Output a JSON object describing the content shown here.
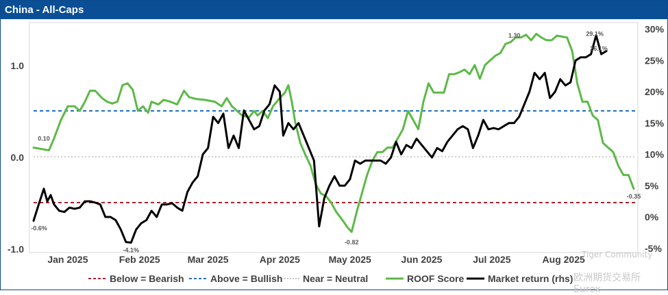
{
  "header": {
    "title": "China - All-Caps"
  },
  "watermark": {
    "line1": "Tiger Community",
    "line2": "欧洲期货交易所Eurex"
  },
  "chart_data": {
    "type": "line",
    "title": "China - All-Caps",
    "left_axis": {
      "ticks": [
        "1.0",
        "0.0",
        "-1.0"
      ],
      "values": [
        1,
        0,
        -1
      ],
      "ylim": [
        -1.0,
        1.35
      ]
    },
    "right_axis": {
      "ticks": [
        "30%",
        "25%",
        "20%",
        "15%",
        "10%",
        "5%",
        "0%",
        "-5%"
      ],
      "values": [
        30,
        25,
        20,
        15,
        10,
        5,
        0,
        -5
      ],
      "ylim": [
        -5,
        30
      ]
    },
    "x_ticks": [
      "Jan 2025",
      "Feb 2025",
      "Mar 2025",
      "Apr 2025",
      "May 2025",
      "Jun 2025",
      "Jul 2025",
      "Aug 2025"
    ],
    "reference_lines": [
      {
        "name": "Below = Bearish",
        "value": -0.5,
        "color": "#a8222a",
        "style": "dashed"
      },
      {
        "name": "Above = Bullish",
        "value": 0.5,
        "color": "#1f6fc0",
        "style": "dashed"
      },
      {
        "name": "Near = Neutral",
        "value": 0.0,
        "color": "#c0c0c0",
        "style": "dotted"
      }
    ],
    "series": [
      {
        "name": "ROOF Score",
        "axis": "left",
        "color": "#5cb947",
        "points": [
          [
            0,
            0.1
          ],
          [
            6,
            0.08
          ],
          [
            9,
            0.07
          ],
          [
            12,
            0.2
          ],
          [
            16,
            0.4
          ],
          [
            20,
            0.55
          ],
          [
            24,
            0.55
          ],
          [
            27,
            0.5
          ],
          [
            30,
            0.6
          ],
          [
            33,
            0.72
          ],
          [
            36,
            0.72
          ],
          [
            40,
            0.64
          ],
          [
            43,
            0.6
          ],
          [
            46,
            0.58
          ],
          [
            49,
            0.6
          ],
          [
            52,
            0.78
          ],
          [
            55,
            0.8
          ],
          [
            58,
            0.73
          ],
          [
            61,
            0.5
          ],
          [
            64,
            0.55
          ],
          [
            67,
            0.48
          ],
          [
            69,
            0.6
          ],
          [
            73,
            0.57
          ],
          [
            76,
            0.62
          ],
          [
            80,
            0.6
          ],
          [
            84,
            0.57
          ],
          [
            88,
            0.72
          ],
          [
            91,
            0.65
          ],
          [
            95,
            0.63
          ],
          [
            100,
            0.62
          ],
          [
            106,
            0.6
          ],
          [
            110,
            0.55
          ],
          [
            113,
            0.64
          ],
          [
            116,
            0.55
          ],
          [
            119,
            0.5
          ],
          [
            122,
            0.45
          ],
          [
            126,
            0.43
          ],
          [
            129,
            0.5
          ],
          [
            131,
            0.45
          ],
          [
            134,
            0.5
          ],
          [
            137,
            0.42
          ],
          [
            140,
            0.55
          ],
          [
            144,
            0.64
          ],
          [
            147,
            0.7
          ],
          [
            149,
            0.78
          ],
          [
            151,
            0.6
          ],
          [
            153,
            0.38
          ],
          [
            156,
            0.15
          ],
          [
            159,
            0.02
          ],
          [
            162,
            -0.1
          ],
          [
            165,
            -0.3
          ],
          [
            168,
            -0.4
          ],
          [
            171,
            -0.43
          ],
          [
            174,
            -0.5
          ],
          [
            177,
            -0.6
          ],
          [
            181,
            -0.7
          ],
          [
            184,
            -0.78
          ],
          [
            186,
            -0.82
          ],
          [
            189,
            -0.6
          ],
          [
            192,
            -0.4
          ],
          [
            195,
            -0.2
          ],
          [
            198,
            -0.05
          ],
          [
            201,
            0.05
          ],
          [
            204,
            0.05
          ],
          [
            207,
            0.1
          ],
          [
            210,
            0.1
          ],
          [
            213,
            0.2
          ],
          [
            216,
            0.3
          ],
          [
            219,
            0.5
          ],
          [
            222,
            0.4
          ],
          [
            225,
            0.3
          ],
          [
            228,
            0.6
          ],
          [
            231,
            0.8
          ],
          [
            234,
            0.7
          ],
          [
            237,
            0.7
          ],
          [
            240,
            0.7
          ],
          [
            243,
            0.9
          ],
          [
            246,
            0.9
          ],
          [
            249,
            0.92
          ],
          [
            252,
            0.95
          ],
          [
            255,
            0.9
          ],
          [
            258,
            1.0
          ],
          [
            261,
            0.85
          ],
          [
            264,
            1.0
          ],
          [
            267,
            1.05
          ],
          [
            270,
            1.1
          ],
          [
            273,
            1.13
          ],
          [
            276,
            1.23
          ],
          [
            279,
            1.25
          ],
          [
            282,
            1.3
          ],
          [
            285,
            1.3
          ],
          [
            288,
            1.33
          ],
          [
            291,
            1.27
          ],
          [
            294,
            1.34
          ],
          [
            297,
            1.3
          ],
          [
            300,
            1.27
          ],
          [
            303,
            1.27
          ],
          [
            306,
            1.32
          ],
          [
            309,
            1.31
          ],
          [
            312,
            1.3
          ],
          [
            315,
            1.15
          ],
          [
            318,
            0.8
          ],
          [
            321,
            0.6
          ],
          [
            324,
            0.6
          ],
          [
            327,
            0.45
          ],
          [
            330,
            0.4
          ],
          [
            333,
            0.15
          ],
          [
            336,
            0.1
          ],
          [
            339,
            0.05
          ],
          [
            342,
            -0.1
          ],
          [
            345,
            -0.2
          ],
          [
            348,
            -0.2
          ],
          [
            351,
            -0.35
          ]
        ]
      },
      {
        "name": "Market return (rhs)",
        "axis": "right",
        "color": "#000000",
        "points": [
          [
            0,
            -0.6
          ],
          [
            3,
            2.0
          ],
          [
            6,
            4.5
          ],
          [
            8,
            2.5
          ],
          [
            10,
            3.5
          ],
          [
            12,
            2.0
          ],
          [
            15,
            1.0
          ],
          [
            18,
            0.8
          ],
          [
            21,
            1.5
          ],
          [
            24,
            1.3
          ],
          [
            27,
            1.5
          ],
          [
            30,
            2.5
          ],
          [
            33,
            2.5
          ],
          [
            36,
            2.3
          ],
          [
            39,
            2.0
          ],
          [
            42,
            0.0
          ],
          [
            45,
            0.0
          ],
          [
            48,
            -0.5
          ],
          [
            51,
            -2.0
          ],
          [
            54,
            -4.0
          ],
          [
            57,
            -4.1
          ],
          [
            60,
            -2.0
          ],
          [
            63,
            -1.0
          ],
          [
            66,
            -0.5
          ],
          [
            69,
            1.0
          ],
          [
            72,
            0.0
          ],
          [
            75,
            2.0
          ],
          [
            78,
            2.0
          ],
          [
            81,
            2.2
          ],
          [
            84,
            1.5
          ],
          [
            87,
            1.0
          ],
          [
            90,
            4.0
          ],
          [
            93,
            5.5
          ],
          [
            96,
            6.5
          ],
          [
            99,
            10.0
          ],
          [
            102,
            11.0
          ],
          [
            105,
            16.0
          ],
          [
            108,
            15.0
          ],
          [
            111,
            16.5
          ],
          [
            114,
            11.0
          ],
          [
            117,
            13.0
          ],
          [
            120,
            11.0
          ],
          [
            123,
            17.0
          ],
          [
            126,
            15.5
          ],
          [
            129,
            14.0
          ],
          [
            132,
            14.5
          ],
          [
            135,
            17.0
          ],
          [
            138,
            18.0
          ],
          [
            141,
            21.0
          ],
          [
            144,
            20.0
          ],
          [
            146,
            13.0
          ],
          [
            149,
            15.0
          ],
          [
            152,
            14.0
          ],
          [
            155,
            15.0
          ],
          [
            158,
            13.0
          ],
          [
            161,
            11.0
          ],
          [
            164,
            9.0
          ],
          [
            167,
            -1.5
          ],
          [
            170,
            3.0
          ],
          [
            173,
            5.0
          ],
          [
            176,
            6.5
          ],
          [
            179,
            5.0
          ],
          [
            182,
            5.0
          ],
          [
            185,
            6.0
          ],
          [
            188,
            9.0
          ],
          [
            191,
            8.5
          ],
          [
            194,
            9.0
          ],
          [
            197,
            9.0
          ],
          [
            200,
            9.0
          ],
          [
            203,
            9.0
          ],
          [
            206,
            8.5
          ],
          [
            209,
            9.5
          ],
          [
            212,
            12.0
          ],
          [
            215,
            10.0
          ],
          [
            218,
            11.5
          ],
          [
            221,
            11.0
          ],
          [
            224,
            12.5
          ],
          [
            227,
            11.5
          ],
          [
            230,
            10.5
          ],
          [
            233,
            9.5
          ],
          [
            236,
            11.0
          ],
          [
            239,
            10.5
          ],
          [
            242,
            12.0
          ],
          [
            245,
            13.0
          ],
          [
            248,
            14.0
          ],
          [
            251,
            14.5
          ],
          [
            254,
            14.0
          ],
          [
            257,
            11.0
          ],
          [
            260,
            13.0
          ],
          [
            263,
            15.5
          ],
          [
            266,
            14.0
          ],
          [
            269,
            14.2
          ],
          [
            272,
            14.0
          ],
          [
            275,
            14.5
          ],
          [
            278,
            15.0
          ],
          [
            281,
            15.0
          ],
          [
            284,
            16.0
          ],
          [
            287,
            18.0
          ],
          [
            290,
            20.0
          ],
          [
            293,
            23.0
          ],
          [
            296,
            22.0
          ],
          [
            299,
            23.0
          ],
          [
            302,
            19.0
          ],
          [
            305,
            20.0
          ],
          [
            308,
            22.0
          ],
          [
            311,
            21.0
          ],
          [
            314,
            21.5
          ],
          [
            317,
            25.0
          ],
          [
            320,
            25.5
          ],
          [
            323,
            25.5
          ],
          [
            326,
            26.0
          ],
          [
            329,
            29.0
          ],
          [
            332,
            26.0
          ],
          [
            335,
            26.5
          ]
        ]
      }
    ],
    "annotations": [
      {
        "series": "ROOF Score",
        "text": "0.10"
      },
      {
        "series": "ROOF Score",
        "text": "-0.82"
      },
      {
        "series": "ROOF Score",
        "text": "1.30"
      },
      {
        "series": "ROOF Score",
        "text": "-0.35"
      },
      {
        "series": "Market return (rhs)",
        "text": "-0.6%"
      },
      {
        "series": "Market return (rhs)",
        "text": "-4.1%"
      },
      {
        "series": "Market return (rhs)",
        "text": "29.1%"
      },
      {
        "series": "Market return (rhs)",
        "text": "26.1%"
      }
    ],
    "legend": [
      {
        "label": "Below = Bearish",
        "color": "#a8222a",
        "style": "dashed"
      },
      {
        "label": "Above = Bullish",
        "color": "#1f6fc0",
        "style": "dashed"
      },
      {
        "label": "Near = Neutral",
        "color": "#c0c0c0",
        "style": "dotted"
      },
      {
        "label": "ROOF Score",
        "color": "#5cb947",
        "style": "solid"
      },
      {
        "label": "Market return (rhs)",
        "color": "#000000",
        "style": "solid"
      }
    ]
  }
}
